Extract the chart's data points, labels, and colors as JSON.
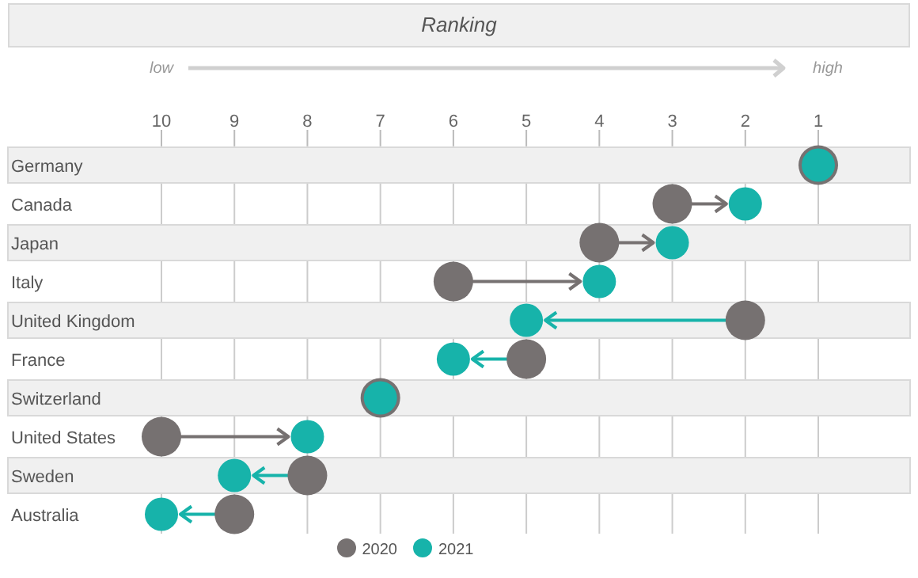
{
  "chart_data": {
    "type": "scatter",
    "title": "Ranking",
    "annotations": [
      "low",
      "high"
    ],
    "categories": [
      "Germany",
      "Canada",
      "Japan",
      "Italy",
      "United Kingdom",
      "France",
      "Switzerland",
      "United States",
      "Sweden",
      "Australia"
    ],
    "series": [
      {
        "name": "2020",
        "color": "#767171",
        "values": [
          1,
          3,
          4,
          6,
          2,
          5,
          7,
          10,
          8,
          9
        ]
      },
      {
        "name": "2021",
        "color": "#17b3aa",
        "values": [
          1,
          2,
          3,
          4,
          5,
          6,
          7,
          8,
          9,
          10
        ]
      }
    ],
    "orientation": "horizontal",
    "xlim": [
      10,
      1
    ],
    "xticks": [
      10,
      9,
      8,
      7,
      6,
      5,
      4,
      3,
      2,
      1
    ],
    "grid": "x",
    "legend": "bottom",
    "marker": "circle"
  }
}
